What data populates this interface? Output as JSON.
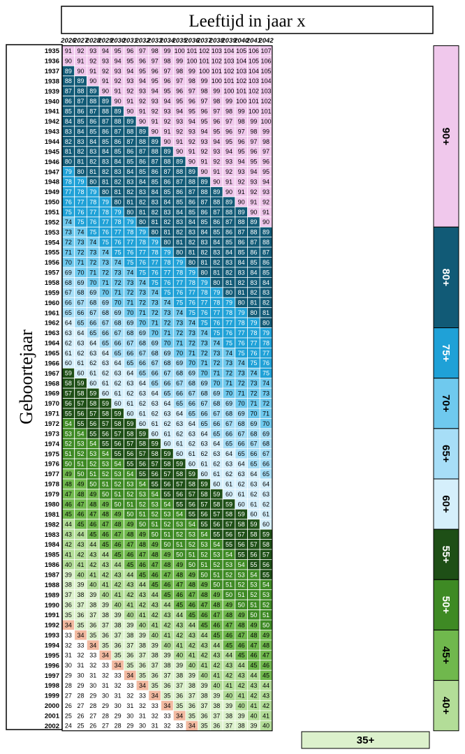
{
  "chart_data": {
    "type": "table",
    "title": "Leeftijd in jaar x",
    "row_axis_label": "Geboortejaar",
    "years": [
      2026,
      2027,
      2028,
      2029,
      2030,
      2031,
      2032,
      2033,
      2034,
      2035,
      2036,
      2037,
      2038,
      2039,
      2040,
      2041,
      2042
    ],
    "birth_year_first": 1935,
    "birth_year_last": 2002,
    "cell_value_rule": "age = year - birth_year",
    "age_bands": [
      {
        "label": "90+",
        "min_age": 90,
        "color": "#f0c8ec",
        "text_color": "#000000"
      },
      {
        "label": "80+",
        "min_age": 80,
        "color": "#115a76",
        "text_color": "#ffffff"
      },
      {
        "label": "75+",
        "min_age": 75,
        "color": "#1fa1d7",
        "text_color": "#ffffff"
      },
      {
        "label": "70+",
        "min_age": 70,
        "color": "#6fc9ee",
        "text_color": "#000000"
      },
      {
        "label": "65+",
        "min_age": 65,
        "color": "#a7def7",
        "text_color": "#000000"
      },
      {
        "label": "60+",
        "min_age": 60,
        "color": "#d5effb",
        "text_color": "#000000"
      },
      {
        "label": "55+",
        "min_age": 55,
        "color": "#1e4f16",
        "text_color": "#ffffff"
      },
      {
        "label": "50+",
        "min_age": 50,
        "color": "#3e8a24",
        "text_color": "#ffffff"
      },
      {
        "label": "45+",
        "min_age": 45,
        "color": "#70b84d",
        "text_color": "#000000"
      },
      {
        "label": "40+",
        "min_age": 40,
        "color": "#b3dd98",
        "text_color": "#000000"
      },
      {
        "label": "35+",
        "min_age": 35,
        "color": "#dcf1cc",
        "text_color": "#000000"
      },
      {
        "label": "",
        "min_age": 0,
        "color": "#ffffff",
        "text_color": "#000000"
      }
    ],
    "highlight_age": 34,
    "highlight_color": "#f2b9a0",
    "colors": {
      "grid_line": "#ffffff",
      "frame": "#000000"
    }
  }
}
